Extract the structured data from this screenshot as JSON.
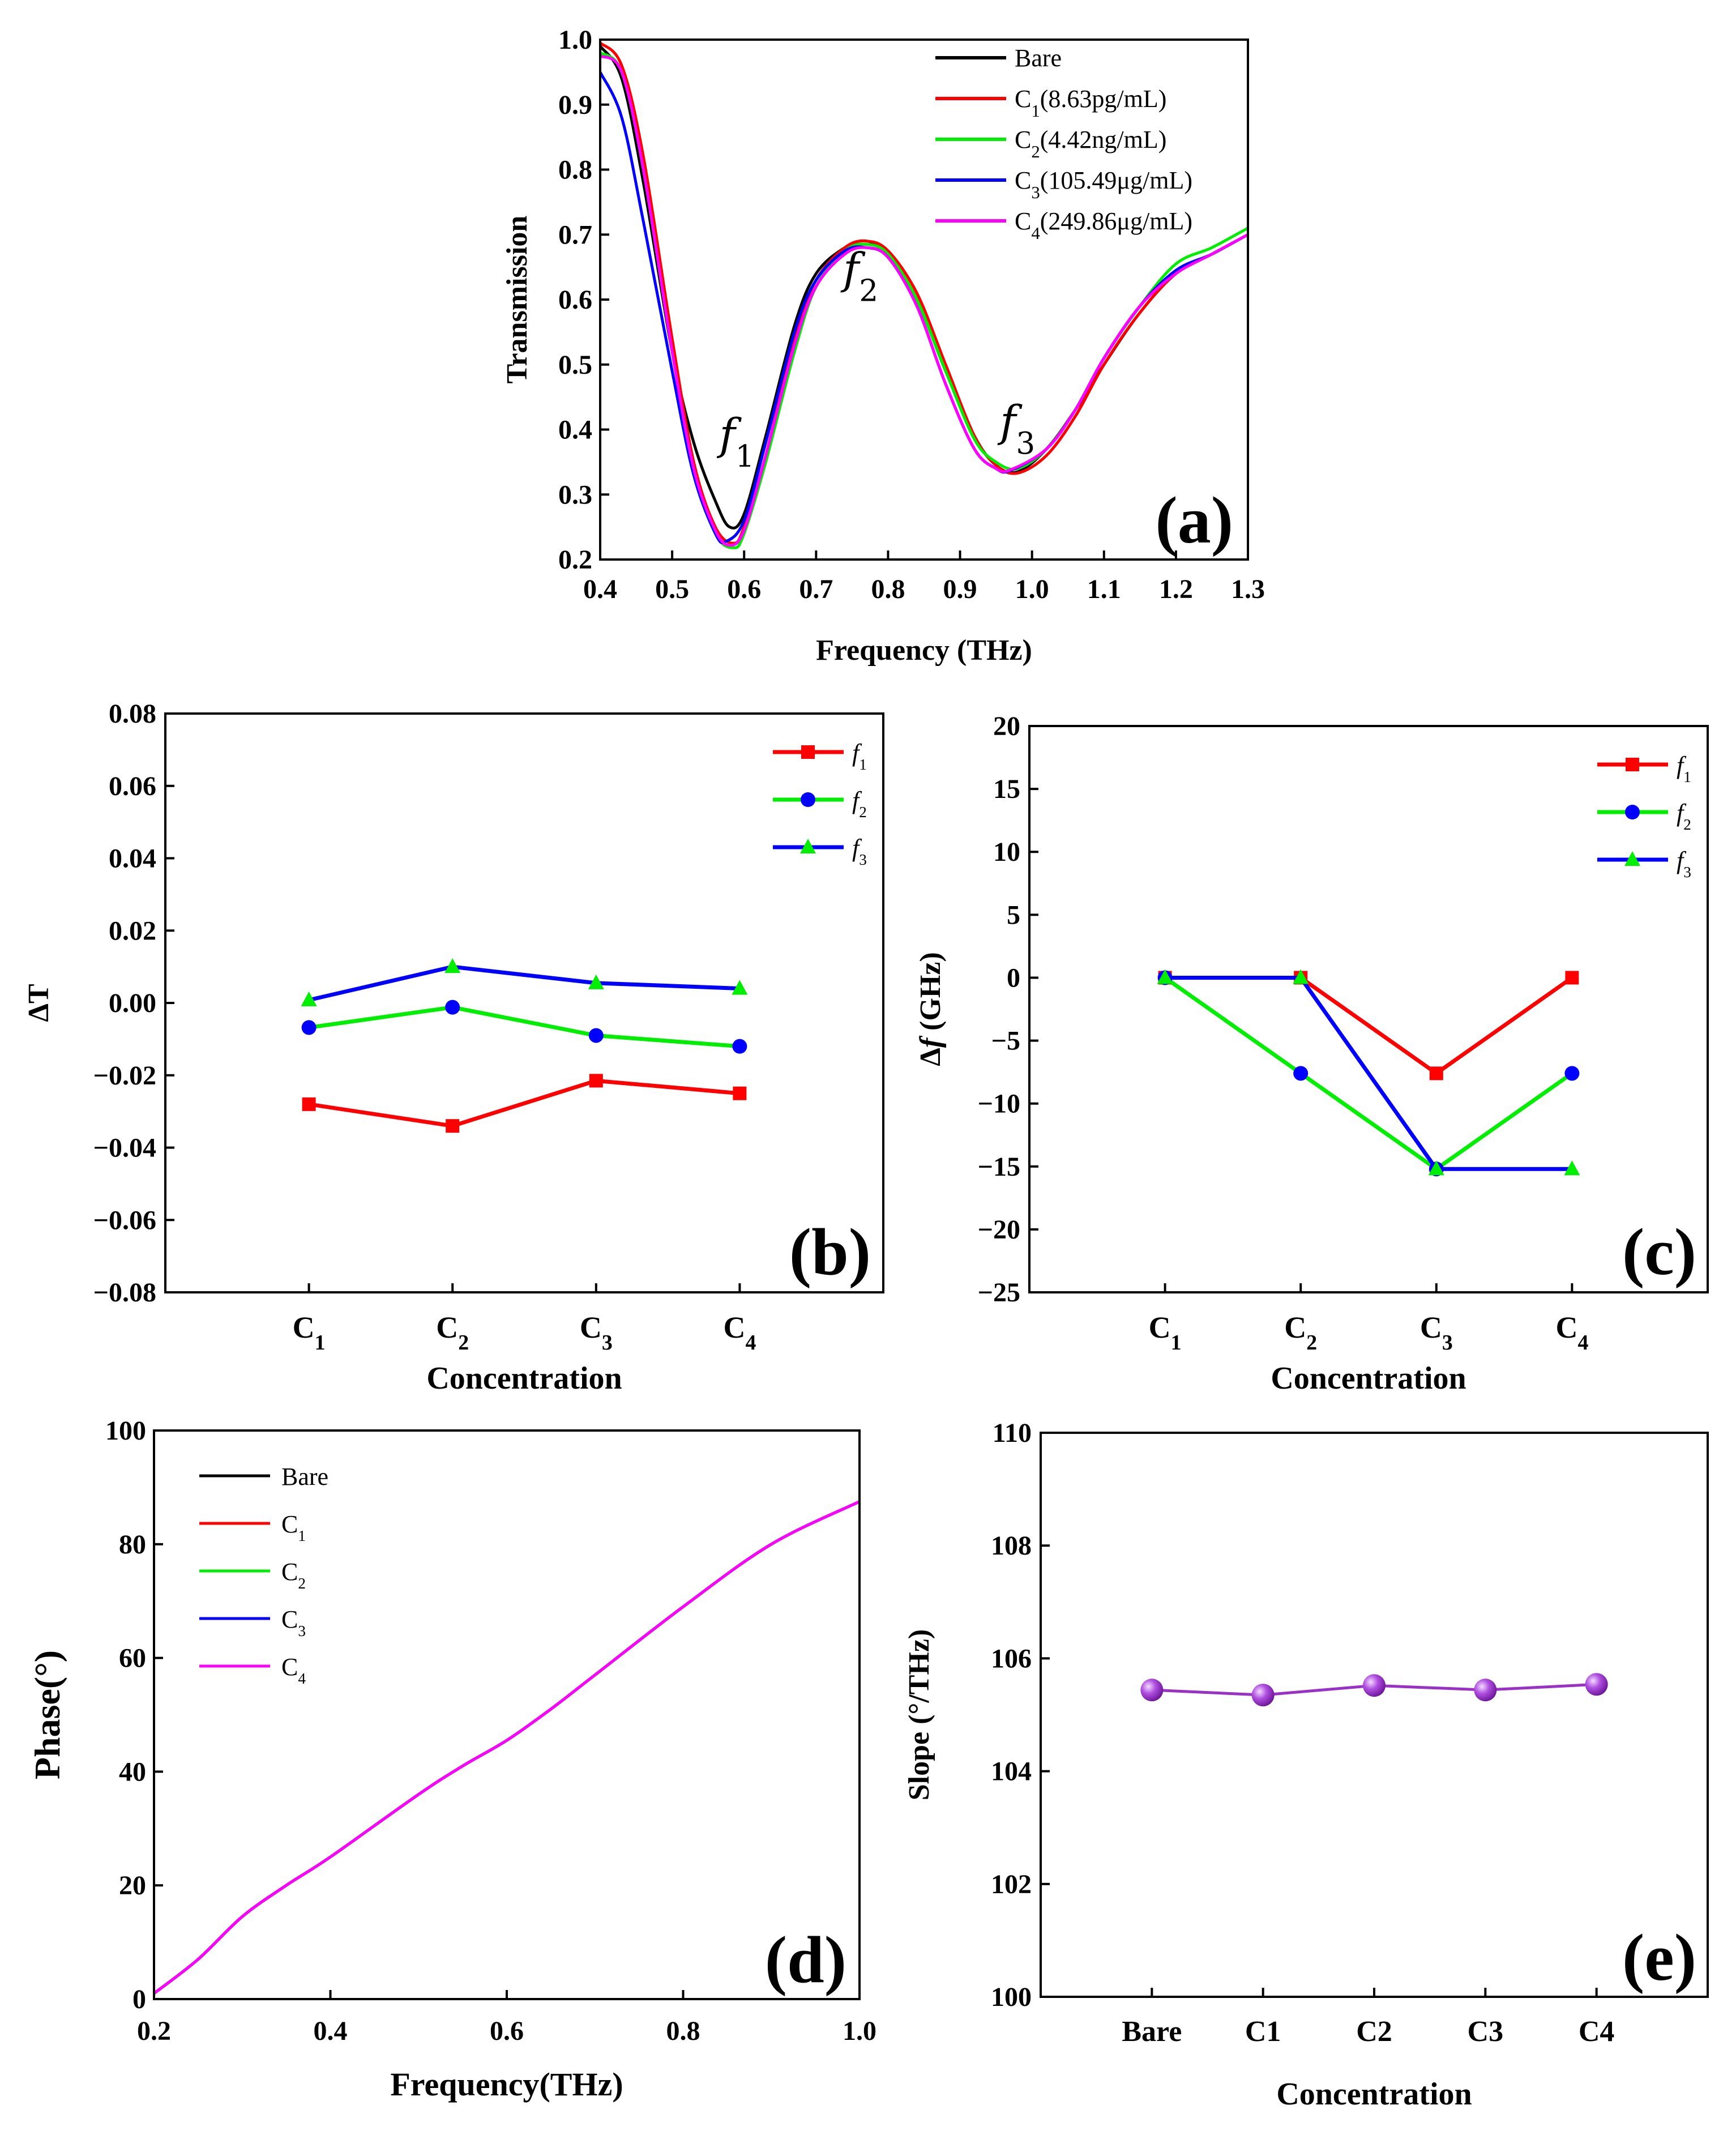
{
  "chart_data": [
    {
      "panel": "a",
      "type": "line",
      "tag": "(a)",
      "xlabel": "Frequency (THz)",
      "ylabel": "Transmission",
      "xlim": [
        0.4,
        1.3
      ],
      "ylim": [
        0.2,
        1.0
      ],
      "xticks": [
        "0.4",
        "0.5",
        "0.6",
        "0.7",
        "0.8",
        "0.9",
        "1.0",
        "1.1",
        "1.2",
        "1.3"
      ],
      "yticks": [
        "0.2",
        "0.3",
        "0.4",
        "0.5",
        "0.6",
        "0.7",
        "0.8",
        "0.9",
        "1.0"
      ],
      "annotations": [
        {
          "base": "f",
          "sub": "1",
          "x": 0.59,
          "y": 0.37
        },
        {
          "base": "f",
          "sub": "2",
          "x": 0.762,
          "y": 0.625
        },
        {
          "base": "f",
          "sub": "3",
          "x": 0.98,
          "y": 0.39
        }
      ],
      "legend_position": "top-right",
      "series": [
        {
          "name": "Bare",
          "main": "C",
          "sub": "",
          "rest": "Bare",
          "color": "#000000",
          "x": [
            0.4,
            0.43,
            0.46,
            0.5,
            0.53,
            0.56,
            0.58,
            0.6,
            0.63,
            0.67,
            0.7,
            0.74,
            0.77,
            0.8,
            0.84,
            0.88,
            0.92,
            0.95,
            0.98,
            1.02,
            1.06,
            1.1,
            1.15,
            1.2,
            1.25,
            1.3
          ],
          "y": [
            0.99,
            0.94,
            0.78,
            0.52,
            0.38,
            0.29,
            0.25,
            0.27,
            0.39,
            0.56,
            0.64,
            0.68,
            0.69,
            0.67,
            0.6,
            0.49,
            0.39,
            0.345,
            0.335,
            0.37,
            0.43,
            0.5,
            0.58,
            0.64,
            0.67,
            0.7
          ]
        },
        {
          "name": "C1(8.63pg/mL)",
          "main": "C",
          "sub": "1",
          "rest": "(8.63pg/mL)",
          "color": "#ff0000",
          "x": [
            0.4,
            0.43,
            0.46,
            0.5,
            0.53,
            0.56,
            0.585,
            0.6,
            0.63,
            0.67,
            0.7,
            0.74,
            0.77,
            0.8,
            0.84,
            0.88,
            0.92,
            0.95,
            0.98,
            1.02,
            1.06,
            1.1,
            1.15,
            1.2,
            1.25,
            1.3
          ],
          "y": [
            0.995,
            0.96,
            0.82,
            0.54,
            0.35,
            0.25,
            0.225,
            0.25,
            0.36,
            0.54,
            0.63,
            0.68,
            0.69,
            0.675,
            0.61,
            0.5,
            0.39,
            0.345,
            0.333,
            0.36,
            0.42,
            0.5,
            0.58,
            0.64,
            0.67,
            0.7
          ]
        },
        {
          "name": "C2(4.42ng/mL)",
          "main": "C",
          "sub": "2",
          "rest": "(4.42ng/mL)",
          "color": "#00ee00",
          "x": [
            0.4,
            0.43,
            0.46,
            0.5,
            0.53,
            0.56,
            0.585,
            0.6,
            0.63,
            0.67,
            0.7,
            0.74,
            0.77,
            0.8,
            0.84,
            0.88,
            0.92,
            0.95,
            0.98,
            1.02,
            1.06,
            1.1,
            1.15,
            1.2,
            1.25,
            1.3
          ],
          "y": [
            0.98,
            0.95,
            0.8,
            0.52,
            0.34,
            0.24,
            0.218,
            0.24,
            0.35,
            0.52,
            0.62,
            0.675,
            0.685,
            0.67,
            0.6,
            0.49,
            0.385,
            0.35,
            0.34,
            0.37,
            0.43,
            0.51,
            0.59,
            0.655,
            0.68,
            0.71
          ]
        },
        {
          "name": "C3(105.49μg/mL)",
          "main": "C",
          "sub": "3",
          "rest": "(105.49μg/mL)",
          "color": "#0000ff",
          "x": [
            0.4,
            0.43,
            0.46,
            0.5,
            0.53,
            0.56,
            0.575,
            0.6,
            0.63,
            0.67,
            0.7,
            0.74,
            0.77,
            0.8,
            0.84,
            0.88,
            0.92,
            0.95,
            0.97,
            1.02,
            1.06,
            1.1,
            1.15,
            1.2,
            1.25,
            1.3
          ],
          "y": [
            0.95,
            0.88,
            0.72,
            0.49,
            0.33,
            0.24,
            0.228,
            0.26,
            0.38,
            0.55,
            0.63,
            0.675,
            0.68,
            0.665,
            0.59,
            0.47,
            0.37,
            0.34,
            0.337,
            0.37,
            0.43,
            0.51,
            0.59,
            0.645,
            0.67,
            0.7
          ]
        },
        {
          "name": "C4(249.86μg/mL)",
          "main": "C",
          "sub": "4",
          "rest": "(249.86μg/mL)",
          "color": "#ff00ff",
          "x": [
            0.4,
            0.43,
            0.46,
            0.5,
            0.53,
            0.56,
            0.58,
            0.6,
            0.63,
            0.67,
            0.7,
            0.74,
            0.77,
            0.8,
            0.84,
            0.88,
            0.92,
            0.95,
            0.97,
            1.02,
            1.06,
            1.1,
            1.15,
            1.2,
            1.25,
            1.3
          ],
          "y": [
            0.975,
            0.95,
            0.8,
            0.52,
            0.34,
            0.245,
            0.222,
            0.245,
            0.36,
            0.53,
            0.62,
            0.67,
            0.68,
            0.665,
            0.59,
            0.47,
            0.37,
            0.34,
            0.338,
            0.37,
            0.43,
            0.51,
            0.59,
            0.64,
            0.67,
            0.7
          ]
        }
      ]
    },
    {
      "panel": "b",
      "type": "line",
      "tag": "(b)",
      "xlabel": "Concentration",
      "ylabel": "ΔT",
      "categories": [
        {
          "main": "C",
          "sub": "1"
        },
        {
          "main": "C",
          "sub": "2"
        },
        {
          "main": "C",
          "sub": "3"
        },
        {
          "main": "C",
          "sub": "4"
        }
      ],
      "ylim": [
        -0.08,
        0.08
      ],
      "yticks": [
        "0.08",
        "0.06",
        "0.04",
        "0.02",
        "0.00",
        "−0.02",
        "−0.04",
        "−0.06",
        "−0.08"
      ],
      "legend_position": "top-right",
      "series": [
        {
          "name": "f1",
          "main": "f",
          "sub": "1",
          "color": "#ff0000",
          "marker": "square",
          "marker_color": "#ff0000",
          "values": [
            -0.028,
            -0.034,
            -0.0215,
            -0.025
          ]
        },
        {
          "name": "f2",
          "main": "f",
          "sub": "2",
          "color": "#00ee00",
          "marker": "circle",
          "marker_color": "#0000ff",
          "values": [
            -0.0068,
            -0.0012,
            -0.009,
            -0.012
          ]
        },
        {
          "name": "f3",
          "main": "f",
          "sub": "3",
          "color": "#0000ff",
          "marker": "triangle",
          "marker_color": "#00ee00",
          "values": [
            0.0008,
            0.01,
            0.0055,
            0.004
          ]
        }
      ]
    },
    {
      "panel": "c",
      "type": "line",
      "tag": "(c)",
      "xlabel": "Concentration",
      "ylabel": "Δf (GHz)",
      "categories": [
        {
          "main": "C",
          "sub": "1"
        },
        {
          "main": "C",
          "sub": "2"
        },
        {
          "main": "C",
          "sub": "3"
        },
        {
          "main": "C",
          "sub": "4"
        }
      ],
      "ylim": [
        -25,
        20
      ],
      "yticks": [
        "20",
        "15",
        "10",
        "5",
        "0",
        "−5",
        "−10",
        "−15",
        "−20",
        "−25"
      ],
      "legend_position": "top-right",
      "series": [
        {
          "name": "f1",
          "main": "f",
          "sub": "1",
          "color": "#ff0000",
          "marker": "square",
          "marker_color": "#ff0000",
          "values": [
            0,
            0,
            -7.6,
            0
          ]
        },
        {
          "name": "f2",
          "main": "f",
          "sub": "2",
          "color": "#00ee00",
          "marker": "circle",
          "marker_color": "#0000ff",
          "values": [
            0,
            -7.6,
            -15.2,
            -7.6
          ]
        },
        {
          "name": "f3",
          "main": "f",
          "sub": "3",
          "color": "#0000ff",
          "marker": "triangle",
          "marker_color": "#00ee00",
          "values": [
            0,
            0,
            -15.2,
            -15.2
          ]
        }
      ]
    },
    {
      "panel": "d",
      "type": "line",
      "tag": "(d)",
      "xlabel": "Frequency(THz)",
      "ylabel": "Phase(°)",
      "xlim": [
        0.2,
        1.0
      ],
      "ylim": [
        0,
        100
      ],
      "xticks": [
        "0.2",
        "0.4",
        "0.6",
        "0.8",
        "1.0"
      ],
      "yticks": [
        "0",
        "20",
        "40",
        "60",
        "80",
        "100"
      ],
      "legend_position": "top-left",
      "series": [
        {
          "name": "Bare",
          "main": "Bare",
          "sub": "",
          "color": "#000000",
          "x": [
            0.2,
            0.25,
            0.3,
            0.35,
            0.4,
            0.5,
            0.55,
            0.6,
            0.65,
            0.7,
            0.8,
            0.9,
            1.0
          ],
          "y": [
            1,
            7,
            14.5,
            20,
            25,
            36,
            41,
            45.5,
            51,
            57,
            69,
            80,
            87.5
          ]
        },
        {
          "name": "C1",
          "main": "C",
          "sub": "1",
          "color": "#ff0000",
          "x": [
            0.2,
            0.25,
            0.3,
            0.35,
            0.4,
            0.5,
            0.55,
            0.6,
            0.65,
            0.7,
            0.8,
            0.9,
            1.0
          ],
          "y": [
            1,
            7,
            14.5,
            20,
            25,
            36,
            41,
            45.5,
            51,
            57,
            69,
            80,
            87.5
          ]
        },
        {
          "name": "C2",
          "main": "C",
          "sub": "2",
          "color": "#00ee00",
          "x": [
            0.2,
            0.25,
            0.3,
            0.35,
            0.4,
            0.5,
            0.55,
            0.6,
            0.65,
            0.7,
            0.8,
            0.9,
            1.0
          ],
          "y": [
            1,
            7,
            14.5,
            20,
            25,
            36,
            41,
            45.5,
            51,
            57,
            69,
            80,
            87.5
          ]
        },
        {
          "name": "C3",
          "main": "C",
          "sub": "3",
          "color": "#0000ff",
          "x": [
            0.2,
            0.25,
            0.3,
            0.35,
            0.4,
            0.5,
            0.55,
            0.6,
            0.65,
            0.7,
            0.8,
            0.9,
            1.0
          ],
          "y": [
            1,
            7,
            14.5,
            20,
            25,
            36,
            41,
            45.5,
            51,
            57,
            69,
            80,
            87.5
          ]
        },
        {
          "name": "C4",
          "main": "C",
          "sub": "4",
          "color": "#ff00ff",
          "x": [
            0.2,
            0.25,
            0.3,
            0.35,
            0.4,
            0.5,
            0.55,
            0.6,
            0.65,
            0.7,
            0.8,
            0.9,
            1.0
          ],
          "y": [
            1,
            7,
            14.5,
            20,
            25,
            36,
            41,
            45.5,
            51,
            57,
            69,
            80,
            87.5
          ]
        }
      ]
    },
    {
      "panel": "e",
      "type": "line",
      "tag": "(e)",
      "xlabel": "Concentration",
      "ylabel": "Slope (°/THz)",
      "categories": [
        "Bare",
        "C1",
        "C2",
        "C3",
        "C4"
      ],
      "ylim": [
        100,
        110
      ],
      "yticks": [
        "110",
        "108",
        "106",
        "104",
        "102",
        "100"
      ],
      "series": [
        {
          "name": "",
          "color": "#9b30c8",
          "marker": "sphere",
          "values": [
            105.44,
            105.35,
            105.52,
            105.44,
            105.54
          ]
        }
      ]
    }
  ]
}
